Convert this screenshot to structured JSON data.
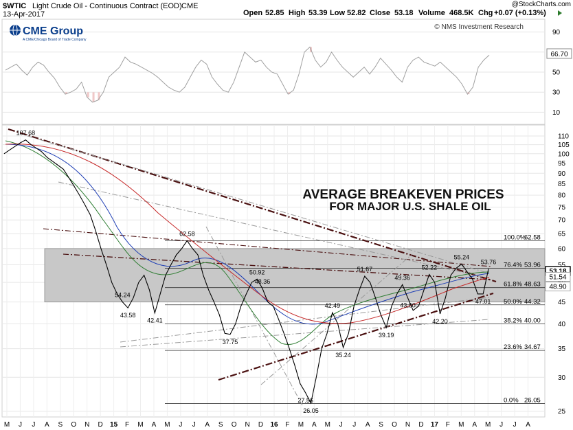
{
  "header": {
    "symbol": "$WTIC",
    "description": "Light Crude Oil - Continuous Contract (EOD)",
    "exchange": "CME",
    "date": "13-Apr-2017",
    "open_label": "Open",
    "open": "52.85",
    "high_label": "High",
    "high": "53.39",
    "low_label": "Low",
    "low": "52.82",
    "close_label": "Close",
    "close": "53.18",
    "volume_label": "Volume",
    "volume": "468.5K",
    "chg_label": "Chg",
    "chg": "+0.07 (+0.13%)",
    "play_icon": "play-triangle-icon",
    "watermark": "@StockCharts.com"
  },
  "logo": {
    "name": "CME Group",
    "tagline": "A CME/Chicago Board of Trade Company",
    "icon": "globe-icon"
  },
  "credit": "© NMS Investment Research",
  "annotation": {
    "line1": "AVERAGE BREAKEVEN PRICES",
    "line2": "FOR MAJOR U.S. SHALE OIL"
  },
  "colors": {
    "price": "#000000",
    "trendline": "#4a1010",
    "rsi_line": "#a0a0a0",
    "rsi_fill": "#f0c8c8",
    "breakeven_zone": "#c8c8c8",
    "ma_green": "#2e7d32",
    "ma_blue": "#1f3fb5",
    "ma_red": "#c62828",
    "price_tag": "#000000"
  },
  "chart_data": [
    {
      "type": "line",
      "title": "RSI",
      "y_ticks": [
        "90",
        "70",
        "50",
        "30",
        "10"
      ],
      "last_value_label": "66.70",
      "last_value": 66.7,
      "ylim": [
        0,
        100
      ],
      "series": [
        {
          "values": [
            52,
            55,
            58,
            52,
            47,
            55,
            60,
            57,
            50,
            44,
            35,
            28,
            30,
            33,
            40,
            25,
            20,
            22,
            30,
            45,
            50,
            55,
            65,
            60,
            58,
            55,
            52,
            49,
            45,
            40,
            35,
            32,
            30,
            35,
            45,
            55,
            62,
            58,
            45,
            38,
            32,
            30,
            40,
            55,
            70,
            65,
            60,
            62,
            55,
            50,
            48,
            38,
            28,
            32,
            48,
            70,
            75,
            62,
            55,
            60,
            70,
            62,
            55,
            50,
            45,
            50,
            55,
            48,
            55,
            64,
            58,
            52,
            45,
            40,
            55,
            62,
            65,
            60,
            58,
            56,
            60,
            55,
            50,
            45,
            38,
            28,
            35,
            55,
            62,
            67
          ]
        }
      ]
    },
    {
      "type": "line",
      "title": "Price",
      "x_ticks": [
        "M",
        "J",
        "J",
        "A",
        "S",
        "O",
        "N",
        "D",
        "15",
        "F",
        "M",
        "A",
        "M",
        "J",
        "J",
        "A",
        "S",
        "O",
        "N",
        "D",
        "16",
        "F",
        "M",
        "A",
        "M",
        "J",
        "J",
        "A",
        "S",
        "O",
        "N",
        "D",
        "17",
        "F",
        "M",
        "A",
        "M",
        "J",
        "J",
        "A"
      ],
      "y_ticks": [
        "110",
        "105",
        "100",
        "95",
        "90",
        "85",
        "80",
        "75",
        "70",
        "65",
        "60",
        "55",
        "50",
        "45",
        "40",
        "35",
        "30",
        "25"
      ],
      "y_log": true,
      "ylim": [
        24.5,
        115
      ],
      "price_tags": [
        "53.18",
        "51.54",
        "48.90"
      ],
      "breakeven_zone": [
        45,
        60
      ],
      "series": [
        {
          "name": "$WTIC",
          "x": [
            0,
            2,
            4,
            6,
            8,
            10,
            12,
            14,
            16,
            18,
            20,
            22,
            24,
            26,
            28,
            30,
            32,
            34,
            36,
            38,
            40,
            42,
            44,
            46,
            48,
            50,
            52,
            54,
            56,
            58,
            60,
            62,
            64,
            66,
            68,
            70,
            72,
            74,
            76,
            78,
            80,
            82,
            84,
            86,
            88,
            90,
            92,
            94,
            96,
            98,
            100,
            102,
            104,
            106,
            108,
            110,
            112,
            114,
            116,
            118,
            120,
            122,
            124,
            126,
            128,
            130,
            132,
            134,
            136,
            138,
            140,
            142,
            144,
            146,
            148,
            150,
            152,
            154,
            156,
            158,
            160,
            162,
            164,
            166,
            168,
            170,
            172,
            174,
            176,
            178,
            180
          ],
          "values": [
            100,
            102,
            104,
            106,
            107.7,
            105,
            103,
            101,
            98,
            96,
            94,
            92,
            88,
            84,
            80,
            76,
            72,
            66,
            60,
            55,
            50,
            47,
            45,
            43.6,
            46,
            50,
            52,
            48,
            42.4,
            47,
            52,
            55,
            58,
            60,
            62.6,
            60,
            58,
            52,
            48,
            45,
            42,
            38,
            37.8,
            40,
            44,
            47,
            50,
            50.9,
            48.4,
            45,
            44,
            41,
            38,
            35,
            32,
            29,
            27.6,
            26.1,
            30,
            35,
            38,
            42.5,
            40,
            35.2,
            38,
            44,
            48,
            51.7,
            50,
            46,
            42,
            39.2,
            44,
            47,
            49.4,
            46,
            43,
            44,
            48,
            52.2,
            50,
            42.2,
            46,
            52,
            54,
            55.2,
            53,
            51,
            47,
            47.0,
            53.8
          ]
        }
      ],
      "swing_labels": [
        "107.68",
        "54.24",
        "43.58",
        "42.41",
        "62.58",
        "37.75",
        "50.92",
        "48.36",
        "27.56",
        "26.05",
        "42.49",
        "35.24",
        "51.67",
        "39.19",
        "49.36",
        "43.00",
        "52.22",
        "42.20",
        "55.24",
        "53.76",
        "47.01"
      ],
      "fibonacci": [
        {
          "label": "100.0%",
          "value": "62.58"
        },
        {
          "label": "76.4%",
          "value": "53.96"
        },
        {
          "label": "61.8%",
          "value": "48.63"
        },
        {
          "label": "50.0%",
          "value": "44.32"
        },
        {
          "label": "38.2%",
          "value": "40.00"
        },
        {
          "label": "23.6%",
          "value": "34.67"
        },
        {
          "label": "0.0%",
          "value": "26.05"
        }
      ]
    }
  ]
}
